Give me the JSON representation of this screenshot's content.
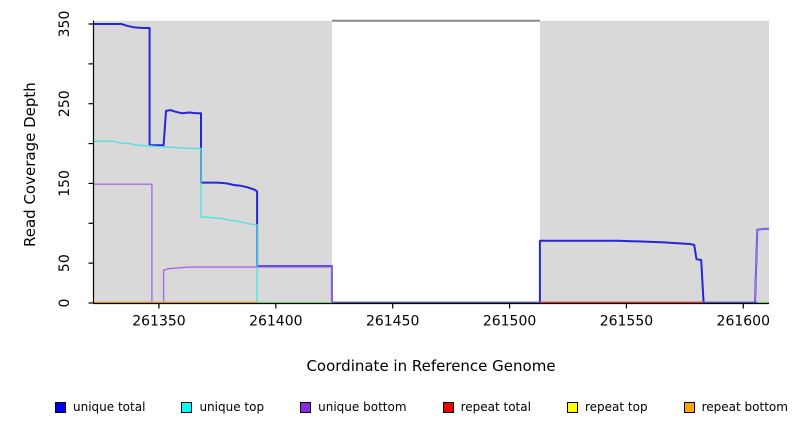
{
  "figure": {
    "xlabel": "Coordinate in Reference Genome",
    "ylabel": "Read Coverage Depth"
  },
  "chart_data": {
    "type": "line",
    "title": "",
    "xlabel": "Coordinate in Reference Genome",
    "ylabel": "Read Coverage Depth",
    "xlim": [
      261322,
      261611
    ],
    "ylim": [
      0,
      354
    ],
    "grid": "off",
    "x_ticks": [
      261350,
      261400,
      261450,
      261500,
      261550,
      261600
    ],
    "x_tick_labels": [
      "261350",
      "261400",
      "261450",
      "261500",
      "261550",
      "261600"
    ],
    "y_ticks": [
      0,
      50,
      100,
      150,
      200,
      250,
      300,
      350
    ],
    "y_tick_labels": [
      "0",
      "50",
      "",
      "150",
      "",
      "250",
      "",
      "350"
    ],
    "panel_bg_color": "#d9d9d9",
    "panel_bg_regions": [
      {
        "x1": 261322,
        "x2": 261424
      },
      {
        "x1": 261513,
        "x2": 261611
      }
    ],
    "gap_top_marker": {
      "x1": 261424,
      "x2": 261513,
      "y": 354,
      "color": "#8a8a8a"
    },
    "series": [
      {
        "name": "unique total",
        "color": "#2626d8",
        "width": 2,
        "points": [
          [
            261322,
            350
          ],
          [
            261334,
            350
          ],
          [
            261336,
            348
          ],
          [
            261339,
            346
          ],
          [
            261343,
            345
          ],
          [
            261346,
            345
          ],
          [
            261346,
            198
          ],
          [
            261352,
            198
          ],
          [
            261353,
            241
          ],
          [
            261355,
            242
          ],
          [
            261357,
            240
          ],
          [
            261360,
            238
          ],
          [
            261363,
            239
          ],
          [
            261366,
            238
          ],
          [
            261368,
            238
          ],
          [
            261368,
            151
          ],
          [
            261375,
            151
          ],
          [
            261379,
            150
          ],
          [
            261382,
            148
          ],
          [
            261385,
            147
          ],
          [
            261388,
            145
          ],
          [
            261391,
            142
          ],
          [
            261392,
            140
          ],
          [
            261392,
            46
          ],
          [
            261424,
            46
          ],
          [
            261424,
            0
          ],
          [
            261513,
            0
          ],
          [
            261513,
            78
          ],
          [
            261546,
            78
          ],
          [
            261558,
            77
          ],
          [
            261566,
            76
          ],
          [
            261572,
            75
          ],
          [
            261577,
            74
          ],
          [
            261579,
            73
          ],
          [
            261580,
            55
          ],
          [
            261582,
            54
          ],
          [
            261583,
            0
          ],
          [
            261605,
            0
          ],
          [
            261606,
            92
          ],
          [
            261609,
            93
          ],
          [
            261611,
            93
          ]
        ]
      },
      {
        "name": "unique top",
        "color": "#53e0e0",
        "width": 1.4,
        "points": [
          [
            261322,
            203
          ],
          [
            261331,
            203
          ],
          [
            261333,
            201
          ],
          [
            261337,
            200
          ],
          [
            261341,
            198
          ],
          [
            261346,
            197
          ],
          [
            261351,
            196
          ],
          [
            261357,
            195
          ],
          [
            261364,
            194
          ],
          [
            261368,
            194
          ],
          [
            261368,
            108
          ],
          [
            261373,
            107
          ],
          [
            261377,
            106
          ],
          [
            261380,
            104
          ],
          [
            261383,
            103
          ],
          [
            261386,
            101
          ],
          [
            261389,
            99
          ],
          [
            261392,
            98
          ],
          [
            261392,
            0
          ]
        ]
      },
      {
        "name": "unique bottom",
        "color": "#a56fe0",
        "width": 1.4,
        "points": [
          [
            261322,
            149
          ],
          [
            261347,
            149
          ],
          [
            261347,
            0
          ],
          [
            261352,
            0
          ],
          [
            261352,
            41
          ],
          [
            261354,
            43
          ],
          [
            261358,
            44
          ],
          [
            261363,
            45
          ],
          [
            261424,
            45
          ],
          [
            261424,
            0
          ],
          [
            261605,
            0
          ],
          [
            261606,
            92
          ],
          [
            261609,
            93
          ],
          [
            261611,
            93
          ]
        ]
      },
      {
        "name": "repeat total",
        "color": "#e23b3b",
        "width": 1.4,
        "points": [
          [
            261322,
            0
          ],
          [
            261611,
            0
          ]
        ]
      },
      {
        "name": "repeat top",
        "color": "#f2f23a",
        "width": 1.4,
        "points": [
          [
            261322,
            0
          ],
          [
            261611,
            0
          ]
        ]
      },
      {
        "name": "repeat bottom",
        "color": "#ff9e1b",
        "width": 1.8,
        "points": [
          [
            261322,
            0
          ],
          [
            261611,
            0
          ]
        ]
      }
    ],
    "baseline_segments": [
      {
        "x1": 261322,
        "x2": 261392,
        "color": "#ff9e1b"
      },
      {
        "x1": 261392,
        "x2": 261424,
        "color": "#8fe08f"
      },
      {
        "x1": 261424,
        "x2": 261513,
        "color": "#5a4fd8"
      },
      {
        "x1": 261513,
        "x2": 261583,
        "color": "#e23b3b"
      },
      {
        "x1": 261583,
        "x2": 261606,
        "color": "#5a4fd8"
      },
      {
        "x1": 261606,
        "x2": 261611,
        "color": "#8fe08f"
      }
    ],
    "legend_position": "bottom",
    "legend": [
      {
        "label": "unique total",
        "color": "#0000ee"
      },
      {
        "label": "unique top",
        "color": "#00ffff"
      },
      {
        "label": "unique bottom",
        "color": "#8a2be2"
      },
      {
        "label": "repeat total",
        "color": "#ee0000"
      },
      {
        "label": "repeat top",
        "color": "#ffff00"
      },
      {
        "label": "repeat bottom",
        "color": "#ffa500"
      }
    ]
  }
}
